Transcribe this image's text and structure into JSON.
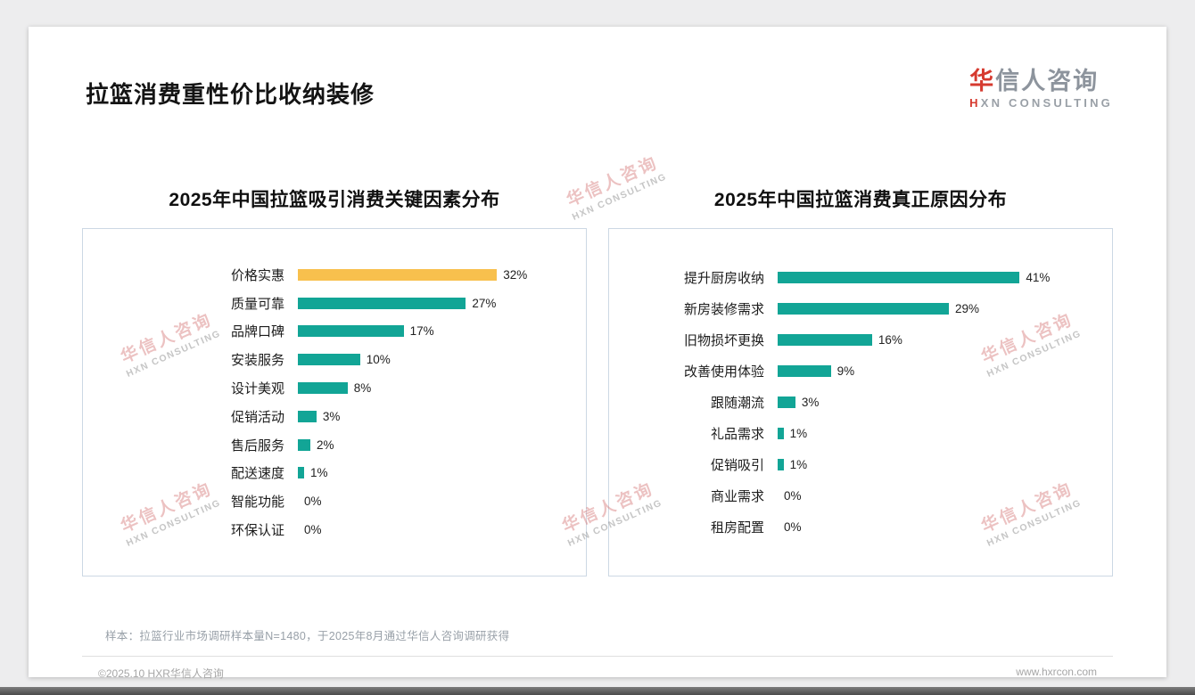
{
  "page": {
    "title": "拉篮消费重性价比收纳装修",
    "footnote": "样本：拉篮行业市场调研样本量N=1480，于2025年8月通过华信人咨询调研获得",
    "footer_left": "©2025.10 HXR华信人咨询",
    "footer_right": "www.hxrcon.com"
  },
  "logo": {
    "cn_first": "华",
    "cn_rest": "信人咨询",
    "en_first": "H",
    "en_rest": "XN CONSULTING"
  },
  "watermark": {
    "cn": "华信人咨询",
    "en": "HXN CONSULTING"
  },
  "colors": {
    "teal": "#12A596",
    "yellow": "#F8C04D",
    "brand_red": "#D63A2F"
  },
  "chart_data": [
    {
      "type": "bar",
      "orientation": "horizontal",
      "title": "2025年中国拉篮吸引消费关键因素分布",
      "categories": [
        "价格实惠",
        "质量可靠",
        "品牌口碑",
        "安装服务",
        "设计美观",
        "促销活动",
        "售后服务",
        "配送速度",
        "智能功能",
        "环保认证"
      ],
      "values": [
        32,
        27,
        17,
        10,
        8,
        3,
        2,
        1,
        0,
        0
      ],
      "unit": "%",
      "xlim": [
        0,
        40
      ],
      "grid": false,
      "legend": false,
      "value_labels": true,
      "bar_color": "#12A596",
      "highlight_index": 0,
      "highlight_color": "#F8C04D"
    },
    {
      "type": "bar",
      "orientation": "horizontal",
      "title": "2025年中国拉篮消费真正原因分布",
      "categories": [
        "提升厨房收纳",
        "新房装修需求",
        "旧物损坏更换",
        "改善使用体验",
        "跟随潮流",
        "礼品需求",
        "促销吸引",
        "商业需求",
        "租房配置"
      ],
      "values": [
        41,
        29,
        16,
        9,
        3,
        1,
        1,
        0,
        0
      ],
      "unit": "%",
      "xlim": [
        0,
        50
      ],
      "grid": false,
      "legend": false,
      "value_labels": true,
      "bar_color": "#12A596"
    }
  ]
}
